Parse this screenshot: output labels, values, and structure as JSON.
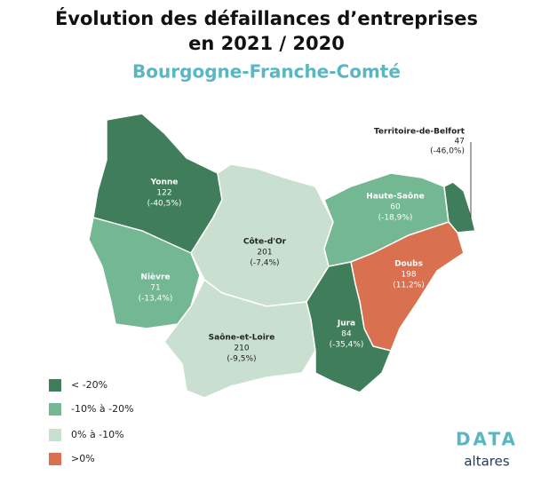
{
  "header": {
    "title_lines": [
      "Évolution des défaillances d’entreprises",
      "en 2021 / 2020"
    ],
    "subtitle": "Bourgogne-Franche-Comté"
  },
  "regions": [
    {
      "name": "Yonne",
      "count": "122",
      "change": "(-40,5%)",
      "color": "#3f7d5b"
    },
    {
      "name": "Nièvre",
      "count": "71",
      "change": "(-13,4%)",
      "color": "#74b893"
    },
    {
      "name": "Côte-d'Or",
      "count": "201",
      "change": "(-7,4%)",
      "color": "#c9e0d0"
    },
    {
      "name": "Saône-et-Loire",
      "count": "210",
      "change": "(-9,5%)",
      "color": "#c9e0d0"
    },
    {
      "name": "Haute-Saône",
      "count": "60",
      "change": "(-18,9%)",
      "color": "#74b893"
    },
    {
      "name": "Territoire-de-Belfort",
      "count": "47",
      "change": "(-46,0%)",
      "color": "#3f7d5b"
    },
    {
      "name": "Doubs",
      "count": "198",
      "change": "(11,2%)",
      "color": "#d9704f"
    },
    {
      "name": "Jura",
      "count": "84",
      "change": "(-35,4%)",
      "color": "#3f7d5b"
    }
  ],
  "legend": [
    {
      "label": "< -20%",
      "color": "#3f7d5b"
    },
    {
      "label": "-10% à -20%",
      "color": "#74b893"
    },
    {
      "label": "0% à -10%",
      "color": "#c9e0d0"
    },
    {
      "label": ">0%",
      "color": "#d9704f"
    }
  ],
  "logo": {
    "top": "DATA",
    "bottom": "altares"
  }
}
